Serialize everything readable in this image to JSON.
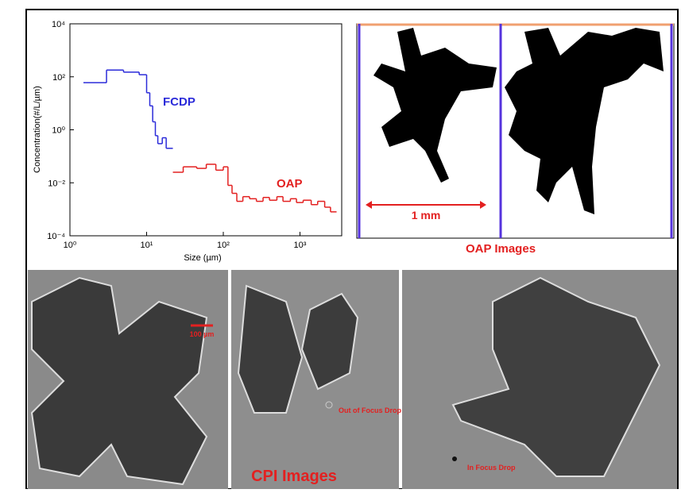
{
  "chart_data": {
    "type": "step",
    "x_label": "Size (µm)",
    "y_label": "Concentration(#/L/µm)",
    "xlog": true,
    "ylog": true,
    "xlim": [
      1,
      3500
    ],
    "ylim": [
      0.0001,
      10000
    ],
    "xticks": [
      {
        "value": 1,
        "label": "10⁰"
      },
      {
        "value": 10,
        "label": "10¹"
      },
      {
        "value": 100,
        "label": "10²"
      },
      {
        "value": 1000,
        "label": "10³"
      }
    ],
    "yticks": [
      {
        "value": 10000,
        "label": "10⁴"
      },
      {
        "value": 100,
        "label": "10²"
      },
      {
        "value": 1,
        "label": "10⁰"
      },
      {
        "value": 0.01,
        "label": "10⁻²"
      },
      {
        "value": 0.0001,
        "label": "10⁻⁴"
      }
    ],
    "series": [
      {
        "name": "FCDP",
        "color": "#2b2bd9",
        "bins": [
          1.5,
          3,
          5,
          8,
          10,
          11,
          12,
          13,
          14,
          16,
          18,
          22
        ],
        "values": [
          60,
          180,
          150,
          120,
          25,
          8,
          2,
          0.6,
          0.3,
          0.5,
          0.2
        ]
      },
      {
        "name": "OAP",
        "color": "#e32020",
        "bins": [
          22,
          30,
          45,
          60,
          80,
          100,
          115,
          130,
          150,
          180,
          220,
          270,
          330,
          400,
          500,
          600,
          750,
          900,
          1100,
          1400,
          1700,
          2100,
          2500,
          3000
        ],
        "values": [
          0.025,
          0.04,
          0.035,
          0.05,
          0.03,
          0.04,
          0.008,
          0.004,
          0.002,
          0.003,
          0.0025,
          0.002,
          0.0028,
          0.0022,
          0.003,
          0.002,
          0.0025,
          0.0018,
          0.0022,
          0.0015,
          0.002,
          0.0012,
          0.0008
        ]
      }
    ]
  },
  "oap_panel": {
    "scale_label": "1 mm",
    "caption": "OAP Images"
  },
  "cpi_panel": {
    "scale_label": "100 µm",
    "out_of_focus": "Out of Focus Drop",
    "in_focus": "In Focus Drop",
    "caption": "CPI Images"
  }
}
